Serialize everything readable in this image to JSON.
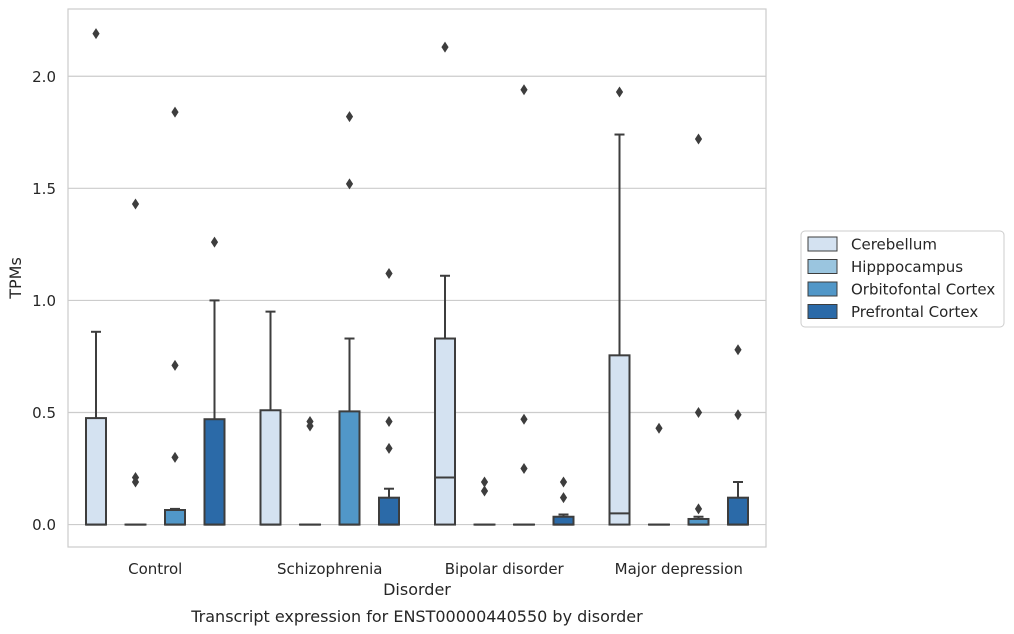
{
  "chart_data": {
    "type": "box",
    "xlabel": "Disorder",
    "ylabel": "TPMs",
    "caption": "Transcript expression for ENST00000440550 by disorder",
    "categories": [
      "Control",
      "Schizophrenia",
      "Bipolar disorder",
      "Major depression"
    ],
    "ylim": [
      -0.1,
      2.3
    ],
    "yticks": [
      "0.0",
      "0.5",
      "1.0",
      "1.5",
      "2.0"
    ],
    "grid": true,
    "legend_position": "right",
    "colors": {
      "series": [
        "#d4e2f1",
        "#9ac5df",
        "#5197c8",
        "#2b6aa8"
      ],
      "box_edge": "#3d3d3d",
      "grid": "#cccccc",
      "spine": "#cccccc"
    },
    "series": [
      {
        "name": "Cerebellum",
        "boxes": [
          {
            "q1": 0.0,
            "median": 0.0,
            "q3": 0.475,
            "whisker_low": 0.0,
            "whisker_high": 0.86,
            "outliers": [
              2.19
            ]
          },
          {
            "q1": 0.0,
            "median": 0.0,
            "q3": 0.51,
            "whisker_low": 0.0,
            "whisker_high": 0.95,
            "outliers": []
          },
          {
            "q1": 0.0,
            "median": 0.21,
            "q3": 0.83,
            "whisker_low": 0.0,
            "whisker_high": 1.11,
            "outliers": [
              2.13
            ]
          },
          {
            "q1": 0.0,
            "median": 0.05,
            "q3": 0.755,
            "whisker_low": 0.0,
            "whisker_high": 1.74,
            "outliers": [
              1.93
            ]
          }
        ]
      },
      {
        "name": "Hipppocampus",
        "boxes": [
          {
            "q1": 0.0,
            "median": 0.0,
            "q3": 0.0,
            "whisker_low": 0.0,
            "whisker_high": 0.0,
            "outliers": [
              1.43,
              0.21,
              0.19
            ]
          },
          {
            "q1": 0.0,
            "median": 0.0,
            "q3": 0.0,
            "whisker_low": 0.0,
            "whisker_high": 0.0,
            "outliers": [
              0.46,
              0.44
            ]
          },
          {
            "q1": 0.0,
            "median": 0.0,
            "q3": 0.0,
            "whisker_low": 0.0,
            "whisker_high": 0.0,
            "outliers": [
              0.19,
              0.15
            ]
          },
          {
            "q1": 0.0,
            "median": 0.0,
            "q3": 0.0,
            "whisker_low": 0.0,
            "whisker_high": 0.0,
            "outliers": [
              0.43
            ]
          }
        ]
      },
      {
        "name": "Orbitofontal Cortex",
        "boxes": [
          {
            "q1": 0.0,
            "median": 0.0,
            "q3": 0.065,
            "whisker_low": 0.0,
            "whisker_high": 0.07,
            "outliers": [
              1.84,
              0.71,
              0.3
            ]
          },
          {
            "q1": 0.0,
            "median": 0.0,
            "q3": 0.505,
            "whisker_low": 0.0,
            "whisker_high": 0.83,
            "outliers": [
              1.82,
              1.52
            ]
          },
          {
            "q1": 0.0,
            "median": 0.0,
            "q3": 0.0,
            "whisker_low": 0.0,
            "whisker_high": 0.0,
            "outliers": [
              1.94,
              0.47,
              0.25
            ]
          },
          {
            "q1": 0.0,
            "median": 0.0,
            "q3": 0.025,
            "whisker_low": 0.0,
            "whisker_high": 0.035,
            "outliers": [
              1.72,
              0.5,
              0.07
            ]
          }
        ]
      },
      {
        "name": "Prefrontal Cortex",
        "boxes": [
          {
            "q1": 0.0,
            "median": 0.0,
            "q3": 0.47,
            "whisker_low": 0.0,
            "whisker_high": 1.0,
            "outliers": [
              1.26
            ]
          },
          {
            "q1": 0.0,
            "median": 0.0,
            "q3": 0.12,
            "whisker_low": 0.0,
            "whisker_high": 0.16,
            "outliers": [
              1.12,
              0.46,
              0.34
            ]
          },
          {
            "q1": 0.0,
            "median": 0.0,
            "q3": 0.035,
            "whisker_low": 0.0,
            "whisker_high": 0.045,
            "outliers": [
              0.19,
              0.12
            ]
          },
          {
            "q1": 0.0,
            "median": 0.0,
            "q3": 0.12,
            "whisker_low": 0.0,
            "whisker_high": 0.19,
            "outliers": [
              0.78,
              0.49
            ]
          }
        ]
      }
    ]
  }
}
